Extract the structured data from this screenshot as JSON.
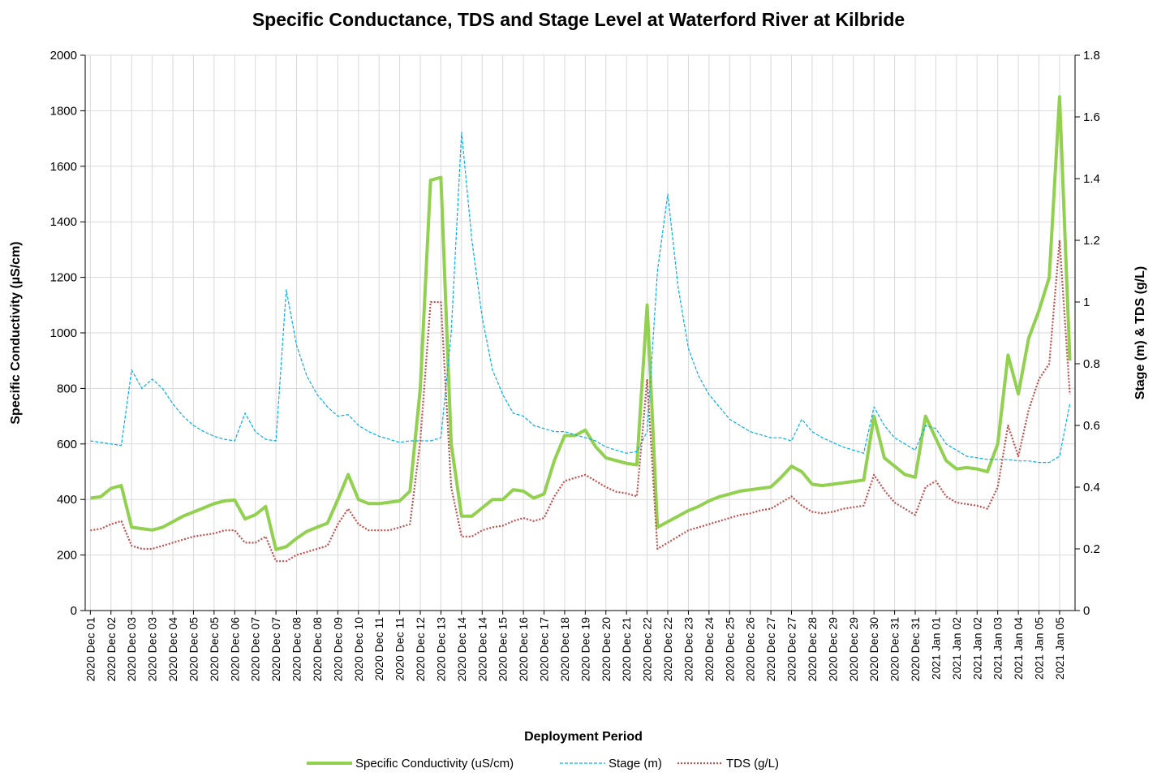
{
  "chart_data": {
    "type": "line",
    "title": "Specific Conductance, TDS and Stage Level at Waterford River at Kilbride",
    "x_label": "Deployment Period",
    "y_label": "Specific Conductivity  (µS/cm)",
    "y2_label": "Stage (m) & TDS (g/L)",
    "categories": [
      "2020 Dec 01",
      null,
      "2020 Dec 02",
      null,
      "2020 Dec 03",
      null,
      "2020 Dec 03",
      null,
      "2020 Dec 04",
      null,
      "2020 Dec 05",
      null,
      "2020 Dec 05",
      null,
      "2020 Dec 06",
      null,
      "2020 Dec 07",
      null,
      "2020 Dec 07",
      null,
      "2020 Dec 08",
      null,
      "2020 Dec 08",
      null,
      "2020 Dec 09",
      null,
      "2020 Dec 10",
      null,
      "2020 Dec 11",
      null,
      "2020 Dec 11",
      null,
      "2020 Dec 12",
      null,
      "2020 Dec 13",
      null,
      "2020 Dec 14",
      null,
      "2020 Dec 14",
      null,
      "2020 Dec 15",
      null,
      "2020 Dec 16",
      null,
      "2020 Dec 17",
      null,
      "2020 Dec 18",
      null,
      "2020 Dec 19",
      null,
      "2020 Dec 20",
      null,
      "2020 Dec 21",
      null,
      "2020 Dec 22",
      null,
      "2020 Dec 22",
      null,
      "2020 Dec 23",
      null,
      "2020 Dec 24",
      null,
      "2020 Dec 25",
      null,
      "2020 Dec 26",
      null,
      "2020 Dec 27",
      null,
      "2020 Dec 27",
      null,
      "2020 Dec 28",
      null,
      "2020 Dec 29",
      null,
      "2020 Dec 29",
      null,
      "2020 Dec 30",
      null,
      "2020 Dec 31",
      null,
      "2020 Dec 31",
      null,
      "2021 Jan 01",
      null,
      "2021 Jan 02",
      null,
      "2021 Jan 02",
      null,
      "2021 Jan 03",
      null,
      "2021 Jan 04",
      null,
      "2021 Jan 05",
      null,
      "2021 Jan 05",
      null
    ],
    "series": [
      {
        "name": "Specific Conductivity (uS/cm)",
        "color": "#92d050",
        "style": "solid",
        "axis": "y",
        "values": [
          405,
          410,
          440,
          450,
          300,
          295,
          290,
          300,
          320,
          340,
          355,
          370,
          385,
          395,
          398,
          330,
          345,
          375,
          220,
          230,
          260,
          285,
          300,
          315,
          400,
          490,
          400,
          385,
          385,
          390,
          395,
          430,
          800,
          1550,
          1560,
          600,
          340,
          340,
          370,
          400,
          400,
          435,
          430,
          405,
          420,
          540,
          630,
          630,
          650,
          590,
          550,
          540,
          530,
          525,
          1100,
          300,
          320,
          340,
          360,
          375,
          395,
          410,
          420,
          430,
          435,
          440,
          445,
          480,
          520,
          500,
          455,
          450,
          455,
          460,
          465,
          470,
          700,
          550,
          520,
          490,
          480,
          700,
          620,
          540,
          510,
          515,
          510,
          500,
          600,
          920,
          780,
          980,
          1080,
          1200,
          1850,
          900
        ]
      },
      {
        "name": "Stage (m)",
        "color": "#00b0f0",
        "style": "dashed",
        "axis": "y2",
        "values": [
          0.55,
          0.545,
          0.54,
          0.535,
          0.78,
          0.72,
          0.75,
          0.72,
          0.67,
          0.63,
          0.6,
          0.58,
          0.565,
          0.555,
          0.55,
          0.64,
          0.58,
          0.555,
          0.55,
          1.04,
          0.86,
          0.76,
          0.7,
          0.66,
          0.63,
          0.635,
          0.6,
          0.58,
          0.565,
          0.555,
          0.545,
          0.55,
          0.55,
          0.55,
          0.56,
          0.9,
          1.55,
          1.2,
          0.95,
          0.78,
          0.7,
          0.64,
          0.63,
          0.6,
          0.59,
          0.58,
          0.58,
          0.57,
          0.56,
          0.55,
          0.53,
          0.52,
          0.51,
          0.515,
          0.58,
          1.1,
          1.35,
          1.05,
          0.85,
          0.76,
          0.7,
          0.66,
          0.62,
          0.6,
          0.58,
          0.57,
          0.56,
          0.56,
          0.55,
          0.62,
          0.58,
          0.56,
          0.545,
          0.53,
          0.52,
          0.51,
          0.66,
          0.6,
          0.56,
          0.54,
          0.52,
          0.6,
          0.59,
          0.54,
          0.52,
          0.5,
          0.495,
          0.49,
          0.49,
          0.49,
          0.485,
          0.485,
          0.48,
          0.48,
          0.5,
          0.67
        ]
      },
      {
        "name": "TDS (g/L)",
        "color": "#c0504d",
        "style": "dotted",
        "axis": "y2",
        "values": [
          0.26,
          0.265,
          0.28,
          0.29,
          0.21,
          0.2,
          0.2,
          0.21,
          0.22,
          0.23,
          0.24,
          0.245,
          0.25,
          0.26,
          0.26,
          0.22,
          0.22,
          0.24,
          0.16,
          0.16,
          0.18,
          0.19,
          0.2,
          0.21,
          0.28,
          0.33,
          0.28,
          0.26,
          0.26,
          0.26,
          0.27,
          0.28,
          0.55,
          1.0,
          1.0,
          0.4,
          0.24,
          0.24,
          0.26,
          0.27,
          0.275,
          0.29,
          0.3,
          0.29,
          0.3,
          0.37,
          0.42,
          0.43,
          0.44,
          0.42,
          0.4,
          0.385,
          0.38,
          0.37,
          0.75,
          0.2,
          0.22,
          0.24,
          0.26,
          0.27,
          0.28,
          0.29,
          0.3,
          0.31,
          0.315,
          0.325,
          0.33,
          0.35,
          0.37,
          0.34,
          0.32,
          0.315,
          0.32,
          0.33,
          0.335,
          0.34,
          0.44,
          0.39,
          0.35,
          0.33,
          0.31,
          0.4,
          0.42,
          0.37,
          0.35,
          0.345,
          0.34,
          0.33,
          0.4,
          0.6,
          0.5,
          0.65,
          0.75,
          0.8,
          1.2,
          0.7
        ]
      }
    ],
    "ylim": [
      0,
      2000
    ],
    "yticks": [
      0,
      200,
      400,
      600,
      800,
      1000,
      1200,
      1400,
      1600,
      1800,
      2000
    ],
    "y2lim": [
      0,
      1.8
    ],
    "y2ticks": [
      0,
      0.2,
      0.4,
      0.6,
      0.8,
      1,
      1.2,
      1.4,
      1.6,
      1.8
    ],
    "grid": true,
    "legend": "bottom"
  }
}
